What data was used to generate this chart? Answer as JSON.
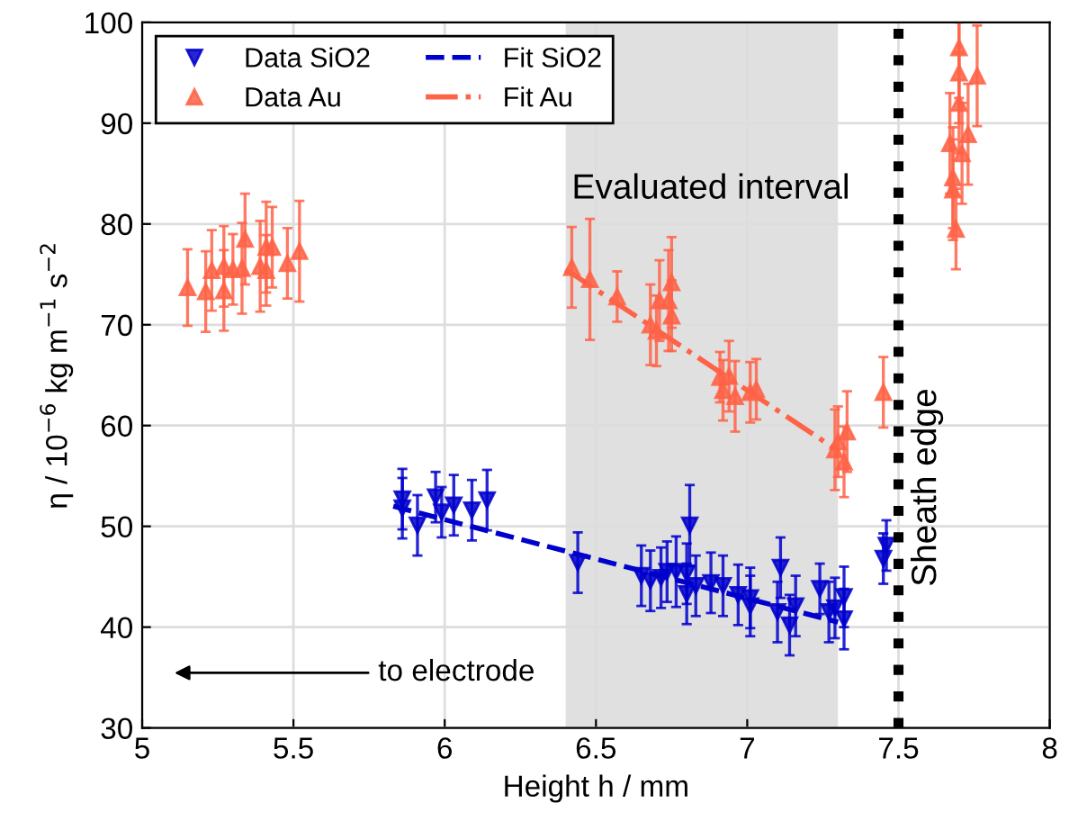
{
  "chart_data": {
    "type": "scatter",
    "xlabel": "Height h / mm",
    "ylabel": "η / 10$^{−6}$ kg m$^{−1}$ s$^{−2}$",
    "xlim": [
      5,
      8
    ],
    "ylim": [
      30,
      100
    ],
    "xticks": [
      5,
      5.5,
      6,
      6.5,
      7,
      7.5,
      8
    ],
    "yticks": [
      30,
      40,
      50,
      60,
      70,
      80,
      90,
      100
    ],
    "grid": true,
    "legend": "top left",
    "series": [
      {
        "name": "Data SiO2",
        "marker": "triangle_down",
        "color": "#0000cd",
        "x": [
          5.86,
          5.86,
          5.91,
          5.97,
          5.99,
          6.03,
          6.09,
          6.14,
          6.44,
          6.65,
          6.68,
          6.715,
          6.735,
          6.765,
          6.8,
          6.81,
          6.8,
          6.83,
          6.88,
          6.92,
          6.97,
          7.01,
          7.01,
          7.1,
          7.11,
          7.14,
          7.16,
          7.24,
          7.27,
          7.29,
          7.32,
          7.32,
          7.46,
          7.45
        ],
        "values": [
          52.7,
          51.8,
          50.1,
          52.9,
          51.4,
          52.1,
          51.6,
          52.6,
          46.4,
          45.1,
          44.6,
          44.9,
          45.5,
          45.5,
          45.3,
          50.1,
          43.3,
          44.1,
          44.4,
          44.1,
          43.2,
          42.1,
          42.9,
          41.5,
          45.9,
          40.2,
          42.1,
          43.8,
          41.5,
          41.9,
          43,
          40.8,
          48.1,
          46.8
        ],
        "errors": [
          3,
          3,
          3,
          2.5,
          2.5,
          3,
          3,
          3,
          3,
          3,
          3,
          3,
          3,
          3.5,
          3,
          4,
          3,
          3,
          3,
          3,
          3,
          3,
          3,
          3,
          3,
          3,
          3,
          2.5,
          3,
          3,
          3,
          3,
          2.5,
          2.5
        ]
      },
      {
        "name": "Data Au",
        "marker": "triangle",
        "color": "#ff6347",
        "x": [
          5.15,
          5.21,
          5.23,
          5.27,
          5.27,
          5.3,
          5.33,
          5.34,
          5.39,
          5.41,
          5.41,
          5.43,
          5.48,
          5.52,
          6.42,
          6.48,
          6.57,
          6.68,
          6.7,
          6.71,
          6.74,
          6.75,
          6.75,
          6.91,
          6.92,
          6.94,
          6.96,
          7.01,
          7.03,
          7.29,
          7.3,
          7.32,
          7.33,
          7.45,
          7.67,
          7.68,
          7.69,
          7.68,
          7.7,
          7.7,
          7.7,
          7.71,
          7.73,
          7.76
        ],
        "values": [
          73.7,
          73.3,
          75.4,
          73.4,
          75.8,
          75.5,
          75.6,
          78.5,
          75.8,
          75.4,
          77.7,
          77.7,
          76.1,
          77.3,
          75.7,
          74.5,
          72.8,
          70,
          69.4,
          72.4,
          72.4,
          74.2,
          70.9,
          64.8,
          63.5,
          64.9,
          62.9,
          63.3,
          63.6,
          57.6,
          58.4,
          56.4,
          59.4,
          63.3,
          88,
          83.4,
          79.5,
          84.6,
          97.5,
          95,
          92,
          87,
          88.9,
          94.7
        ],
        "errors": [
          3.8,
          4,
          4,
          4,
          4,
          3.5,
          4.5,
          4.5,
          4.5,
          3.5,
          4.5,
          4,
          3.5,
          5,
          4,
          6,
          2.5,
          4,
          3.5,
          4,
          5,
          4.5,
          3.5,
          2.5,
          3,
          3.5,
          3.5,
          3,
          3,
          4,
          3.5,
          3.5,
          4,
          3.5,
          5,
          5,
          4,
          5,
          5,
          5,
          5,
          5,
          5,
          5
        ]
      },
      {
        "name": "Fit SiO2",
        "type": "line",
        "line_style": "dashed",
        "color": "#0000cd",
        "x": [
          5.83,
          7.3
        ],
        "values": [
          52,
          40.5
        ]
      },
      {
        "name": "Fit Au",
        "type": "line",
        "line_style": "dashdot",
        "color": "#ff6347",
        "x": [
          6.4,
          7.3
        ],
        "values": [
          75.5,
          57.5
        ]
      }
    ],
    "bands": [
      {
        "axis": "x",
        "from": 6.4,
        "to": 7.3,
        "label": "Evaluated interval",
        "color": "#e0e0e0"
      }
    ],
    "ref_lines": [
      {
        "axis": "x",
        "value": 7.5,
        "label": "Sheath edge",
        "color": "#000000",
        "line_style": "dotted"
      }
    ],
    "annotations": [
      "to electrode"
    ]
  }
}
